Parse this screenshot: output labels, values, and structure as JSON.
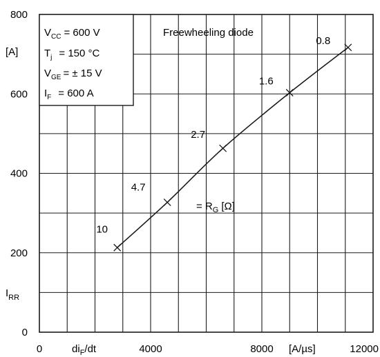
{
  "chart_data": {
    "type": "line",
    "title": "Freewheeling diode",
    "xlim": [
      0,
      12000
    ],
    "ylim": [
      0,
      800
    ],
    "x_ticks": [
      "0",
      "4000",
      "8000",
      "12000"
    ],
    "y_ticks": [
      "0",
      "200",
      "400",
      "600",
      "800"
    ],
    "grid": true,
    "xlabel": "di",
    "xlabel_sub": "F",
    "xlabel_tail": "/dt",
    "xunit": "[A/µs]",
    "ylabel": "I",
    "ylabel_sub": "RR",
    "yunit": "[A]",
    "series": [
      {
        "x": [
          2800,
          4600,
          6600,
          9000,
          11100
        ],
        "y": [
          213,
          327,
          463,
          603,
          717
        ],
        "point_labels": [
          "10",
          "4.7",
          "2.7",
          "1.6",
          "0.8"
        ]
      }
    ],
    "param_label": "= R",
    "param_sub": "G",
    "param_unit": "[Ω]",
    "conditions": [
      {
        "sym": "V",
        "sub": "CC",
        "val": "= 600 V"
      },
      {
        "sym": "T",
        "sub": "j",
        "val": "= 150 °C"
      },
      {
        "sym": "V",
        "sub": "GE",
        "val": "= ± 15 V"
      },
      {
        "sym": "I",
        "sub": "F",
        "val": "= 600 A"
      }
    ]
  }
}
